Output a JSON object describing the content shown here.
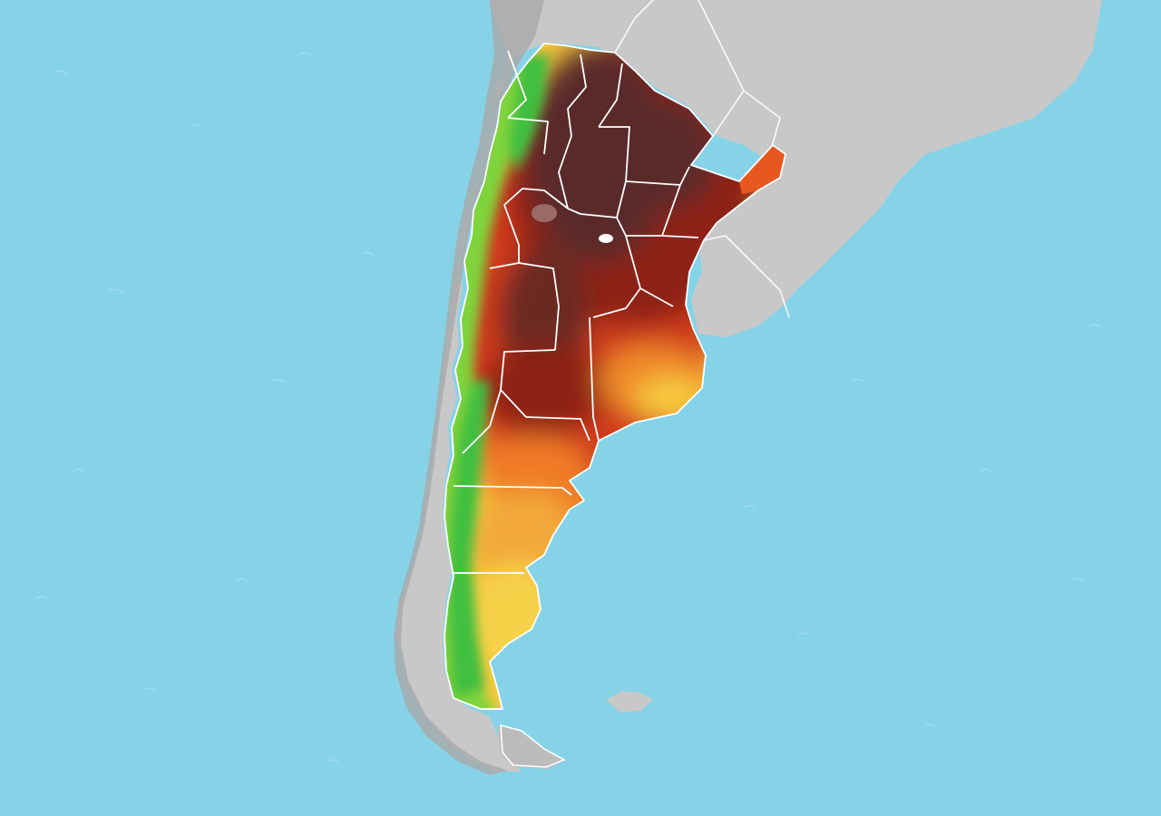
{
  "map": {
    "region": "Argentina",
    "colors": {
      "ocean": "#86d3e8",
      "land": "#c8c8c8",
      "land_shade": "#a9a9a9",
      "border": "#ffffff",
      "heat_hottest": "#5a2a2a",
      "heat_very_hot": "#8e2218",
      "heat_hot": "#d13a1e",
      "heat_warm": "#ef7a26",
      "heat_mild": "#f6c93c",
      "heat_cool": "#8fd23a",
      "heat_cold": "#3fbf3f"
    }
  }
}
